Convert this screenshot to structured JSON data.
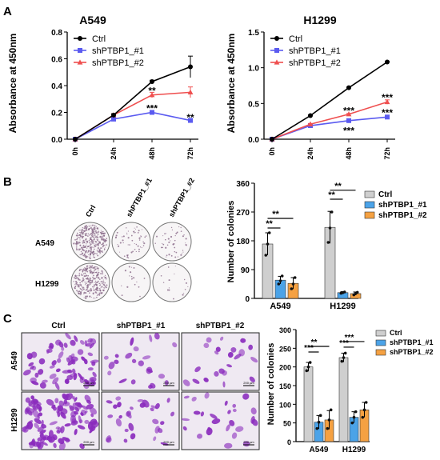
{
  "colors": {
    "ctrl": "#000000",
    "sh1_line": "#5b5bf0",
    "sh2_line": "#ef4f4f",
    "bar_ctrl": "#cfcfcf",
    "bar_sh1": "#4ba3e8",
    "bar_sh2": "#f5a142",
    "stain": "#8a2bbd"
  },
  "panel_a": {
    "letter": "A",
    "legend": [
      "Ctrl",
      "shPTBP1_#1",
      "shPTBP1_#2"
    ],
    "x": [
      "0h",
      "24h",
      "48h",
      "72h"
    ],
    "ylabel": "Absorbance at 450nm"
  },
  "panel_b": {
    "letter": "B",
    "plate_columns": [
      "Ctrl",
      "shPTBP1_#1",
      "shPTBP1_#2"
    ],
    "plate_rows": [
      "A549",
      "H1299"
    ]
  },
  "panel_c": {
    "letter": "C",
    "image_columns": [
      "Ctrl",
      "shPTBP1_#1",
      "shPTBP1_#2"
    ],
    "image_rows": [
      "A549",
      "H1299"
    ],
    "scale_bar": "200 µm"
  },
  "chart_data": [
    {
      "type": "line",
      "title": "A549",
      "ylabel": "Absorbance at 450nm",
      "x": [
        "0h",
        "24h",
        "48h",
        "72h"
      ],
      "ylim": [
        0.0,
        0.8
      ],
      "yticks": [
        "0.0",
        "0.2",
        "0.4",
        "0.6",
        "0.8"
      ],
      "series": [
        {
          "name": "Ctrl",
          "values": [
            0.0,
            0.18,
            0.43,
            0.54
          ],
          "err": [
            0,
            0.01,
            0.01,
            0.08
          ]
        },
        {
          "name": "shPTBP1_#1",
          "values": [
            0.0,
            0.15,
            0.2,
            0.14
          ],
          "err": [
            0,
            0.01,
            0.01,
            0.01
          ]
        },
        {
          "name": "shPTBP1_#2",
          "values": [
            0.0,
            0.18,
            0.33,
            0.35
          ],
          "err": [
            0,
            0.01,
            0.02,
            0.04
          ]
        }
      ],
      "annotations": [
        {
          "x": "48h",
          "y": 0.36,
          "text": "**"
        },
        {
          "x": "48h",
          "y": 0.23,
          "text": "***"
        },
        {
          "x": "72h",
          "y": 0.16,
          "text": "**"
        }
      ]
    },
    {
      "type": "line",
      "title": "H1299",
      "ylabel": "Absorbance at 450nm",
      "x": [
        "0h",
        "24h",
        "48h",
        "72h"
      ],
      "ylim": [
        0.0,
        1.5
      ],
      "yticks": [
        "0.0",
        "0.5",
        "1.0",
        "1.5"
      ],
      "series": [
        {
          "name": "Ctrl",
          "values": [
            0.0,
            0.33,
            0.72,
            1.08
          ],
          "err": [
            0,
            0.01,
            0.01,
            0.01
          ]
        },
        {
          "name": "shPTBP1_#1",
          "values": [
            0.0,
            0.19,
            0.26,
            0.31
          ],
          "err": [
            0,
            0.01,
            0.01,
            0.01
          ]
        },
        {
          "name": "shPTBP1_#2",
          "values": [
            0.0,
            0.21,
            0.35,
            0.52
          ],
          "err": [
            0,
            0.01,
            0.01,
            0.03
          ]
        }
      ],
      "annotations": [
        {
          "x": "48h",
          "y": 0.4,
          "text": "***"
        },
        {
          "x": "48h",
          "y": 0.12,
          "text": "***"
        },
        {
          "x": "72h",
          "y": 0.58,
          "text": "***"
        },
        {
          "x": "72h",
          "y": 0.37,
          "text": "***"
        }
      ]
    },
    {
      "type": "bar",
      "ylabel": "Number of colonies",
      "categories": [
        "A549",
        "H1299"
      ],
      "ylim": [
        0,
        360
      ],
      "yticks": [
        "0",
        "90",
        "180",
        "270",
        "360"
      ],
      "series": [
        {
          "name": "Ctrl",
          "values": [
            170,
            222
          ],
          "err": [
            35,
            50
          ],
          "points": [
            [
              135,
              170,
              205
            ],
            [
              175,
              220,
              270
            ]
          ]
        },
        {
          "name": "shPTBP1_#1",
          "values": [
            57,
            18
          ],
          "err": [
            12,
            3
          ],
          "points": [
            [
              45,
              55,
              70
            ],
            [
              16,
              18,
              20
            ]
          ]
        },
        {
          "name": "shPTBP1_#2",
          "values": [
            47,
            15
          ],
          "err": [
            18,
            5
          ],
          "points": [
            [
              30,
              45,
              65
            ],
            [
              11,
              15,
              19
            ]
          ]
        }
      ],
      "comparisons": [
        {
          "category": "A549",
          "from": 0,
          "to": 1,
          "y": 220,
          "text": "**"
        },
        {
          "category": "A549",
          "from": 0,
          "to": 2,
          "y": 250,
          "text": "**"
        },
        {
          "category": "H1299",
          "from": 0,
          "to": 1,
          "y": 310,
          "text": "**"
        },
        {
          "category": "H1299",
          "from": 0,
          "to": 2,
          "y": 338,
          "text": "**"
        }
      ],
      "legend_position": "top-right"
    },
    {
      "type": "bar",
      "ylabel": "Number of colonies",
      "categories": [
        "A549",
        "H1299"
      ],
      "ylim": [
        0,
        300
      ],
      "yticks": [
        "0",
        "50",
        "100",
        "150",
        "200",
        "250",
        "300"
      ],
      "series": [
        {
          "name": "Ctrl",
          "values": [
            200,
            225
          ],
          "err": [
            12,
            12
          ],
          "points": [
            [
              190,
              200,
              212
            ],
            [
              215,
              225,
              237
            ]
          ]
        },
        {
          "name": "shPTBP1_#1",
          "values": [
            52,
            65
          ],
          "err": [
            18,
            15
          ],
          "points": [
            [
              35,
              52,
              70
            ],
            [
              50,
              65,
              80
            ]
          ]
        },
        {
          "name": "shPTBP1_#2",
          "values": [
            58,
            85
          ],
          "err": [
            25,
            20
          ],
          "points": [
            [
              35,
              58,
              85
            ],
            [
              65,
              85,
              105
            ]
          ]
        }
      ],
      "comparisons": [
        {
          "category": "A549",
          "from": 0,
          "to": 1,
          "y": 240,
          "text": "***"
        },
        {
          "category": "A549",
          "from": 0,
          "to": 2,
          "y": 255,
          "text": "**"
        },
        {
          "category": "H1299",
          "from": 0,
          "to": 1,
          "y": 253,
          "text": "***"
        },
        {
          "category": "H1299",
          "from": 0,
          "to": 2,
          "y": 268,
          "text": "***"
        }
      ],
      "legend_position": "top-right"
    }
  ]
}
